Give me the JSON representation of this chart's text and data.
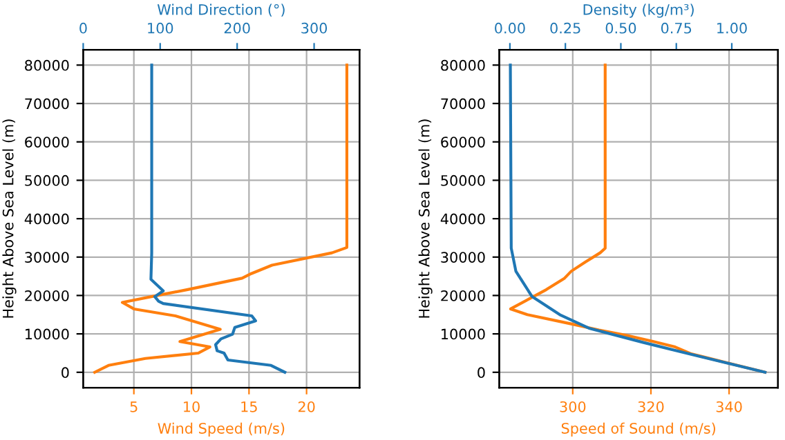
{
  "chart_data": [
    {
      "type": "line",
      "xlabel": "Wind Speed (m/s)",
      "x2label": "Wind Direction (°)",
      "ylabel": "Height Above Sea Level (m)",
      "xlim": [
        0.6,
        24.6
      ],
      "xticks": [
        5,
        10,
        15,
        20
      ],
      "x2lim": [
        0,
        359
      ],
      "x2ticks": [
        0,
        100,
        200,
        300
      ],
      "ylim": [
        -4000,
        84000
      ],
      "yticks": [
        0,
        10000,
        20000,
        30000,
        40000,
        50000,
        60000,
        70000,
        80000
      ],
      "grid": true,
      "series": [
        {
          "color": "#1f77b4",
          "axis": "x2",
          "x": [
            262,
            244,
            188,
            183,
            174,
            172,
            179,
            194,
            197,
            224,
            219,
            104,
            98,
            93,
            104,
            88,
            89,
            89
          ],
          "values": [
            0,
            1800,
            3200,
            5000,
            5600,
            7200,
            8700,
            9900,
            11700,
            13400,
            14700,
            17900,
            18500,
            19700,
            21200,
            24200,
            31100,
            80000
          ]
        },
        {
          "color": "#ff7f0e",
          "x": [
            1.6,
            2.8,
            6.0,
            10.6,
            11.6,
            9.0,
            12.5,
            8.6,
            5.0,
            4.0,
            7.2,
            9.6,
            14.4,
            15.2,
            17.0,
            22.2,
            23.5,
            23.5
          ],
          "values": [
            0,
            1800,
            3600,
            5000,
            6600,
            8000,
            11200,
            14700,
            16500,
            18200,
            20100,
            21500,
            24500,
            25700,
            27900,
            31100,
            32500,
            80000
          ]
        }
      ]
    },
    {
      "type": "line",
      "xlabel": "Speed of Sound (m/s)",
      "x2label": "Density (kg/m³)",
      "ylabel": "Height Above Sea Level (m)",
      "xlim": [
        281.2,
        352.5
      ],
      "xticks": [
        300,
        320,
        340
      ],
      "x2lim": [
        -0.048,
        1.208
      ],
      "x2ticks": [
        {
          "value": 0,
          "label": "0.00"
        },
        {
          "value": 0.25,
          "label": "0.25"
        },
        {
          "value": 0.5,
          "label": "0.50"
        },
        {
          "value": 0.75,
          "label": "0.75"
        },
        {
          "value": 1.0,
          "label": "1.00"
        }
      ],
      "ylim": [
        -4000,
        84000
      ],
      "yticks": [
        0,
        10000,
        20000,
        30000,
        40000,
        50000,
        60000,
        70000,
        80000
      ],
      "grid": true,
      "series": [
        {
          "color": "#1f77b4",
          "axis": "x2",
          "x": [
            1.15,
            0.807,
            0.599,
            0.36,
            0.225,
            0.1,
            0.027,
            0.006,
            0.002
          ],
          "values": [
            0,
            4800,
            7800,
            11400,
            15000,
            19700,
            26300,
            32300,
            80000
          ]
        },
        {
          "color": "#ff7f0e",
          "x": [
            349.2,
            339.8,
            330.3,
            326.2,
            320.3,
            313.8,
            306.7,
            299.6,
            288.4,
            284.1,
            293.2,
            297.9,
            299.6,
            303.2,
            307.0,
            308.3,
            308.3
          ],
          "values": [
            0,
            2400,
            4800,
            6600,
            8100,
            9600,
            11000,
            12600,
            15000,
            16500,
            21500,
            24500,
            26300,
            28700,
            31100,
            32300,
            80000
          ]
        }
      ]
    }
  ]
}
